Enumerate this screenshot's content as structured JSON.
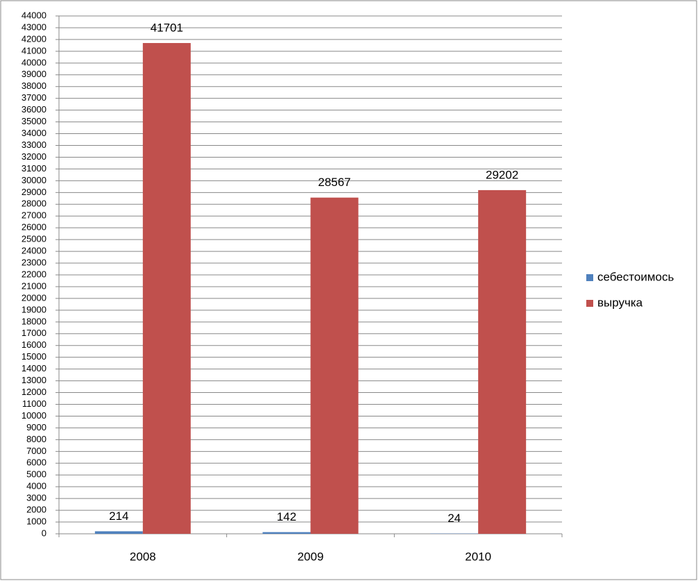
{
  "chart_data": {
    "type": "bar",
    "categories": [
      "2008",
      "2009",
      "2010"
    ],
    "series": [
      {
        "name": "себестоимось",
        "color": "#4f81bd",
        "values": [
          214,
          142,
          24
        ]
      },
      {
        "name": "выручка",
        "color": "#c0504d",
        "values": [
          41701,
          28567,
          29202
        ]
      }
    ],
    "ylim": [
      0,
      44000
    ],
    "yticks": [
      0,
      1000,
      2000,
      3000,
      4000,
      5000,
      6000,
      7000,
      8000,
      9000,
      10000,
      11000,
      12000,
      13000,
      14000,
      15000,
      16000,
      17000,
      18000,
      19000,
      20000,
      21000,
      22000,
      23000,
      24000,
      25000,
      26000,
      27000,
      28000,
      29000,
      30000,
      31000,
      32000,
      33000,
      34000,
      35000,
      36000,
      37000,
      38000,
      39000,
      40000,
      41000,
      42000,
      43000,
      44000
    ],
    "grid": true,
    "legend": "right"
  }
}
